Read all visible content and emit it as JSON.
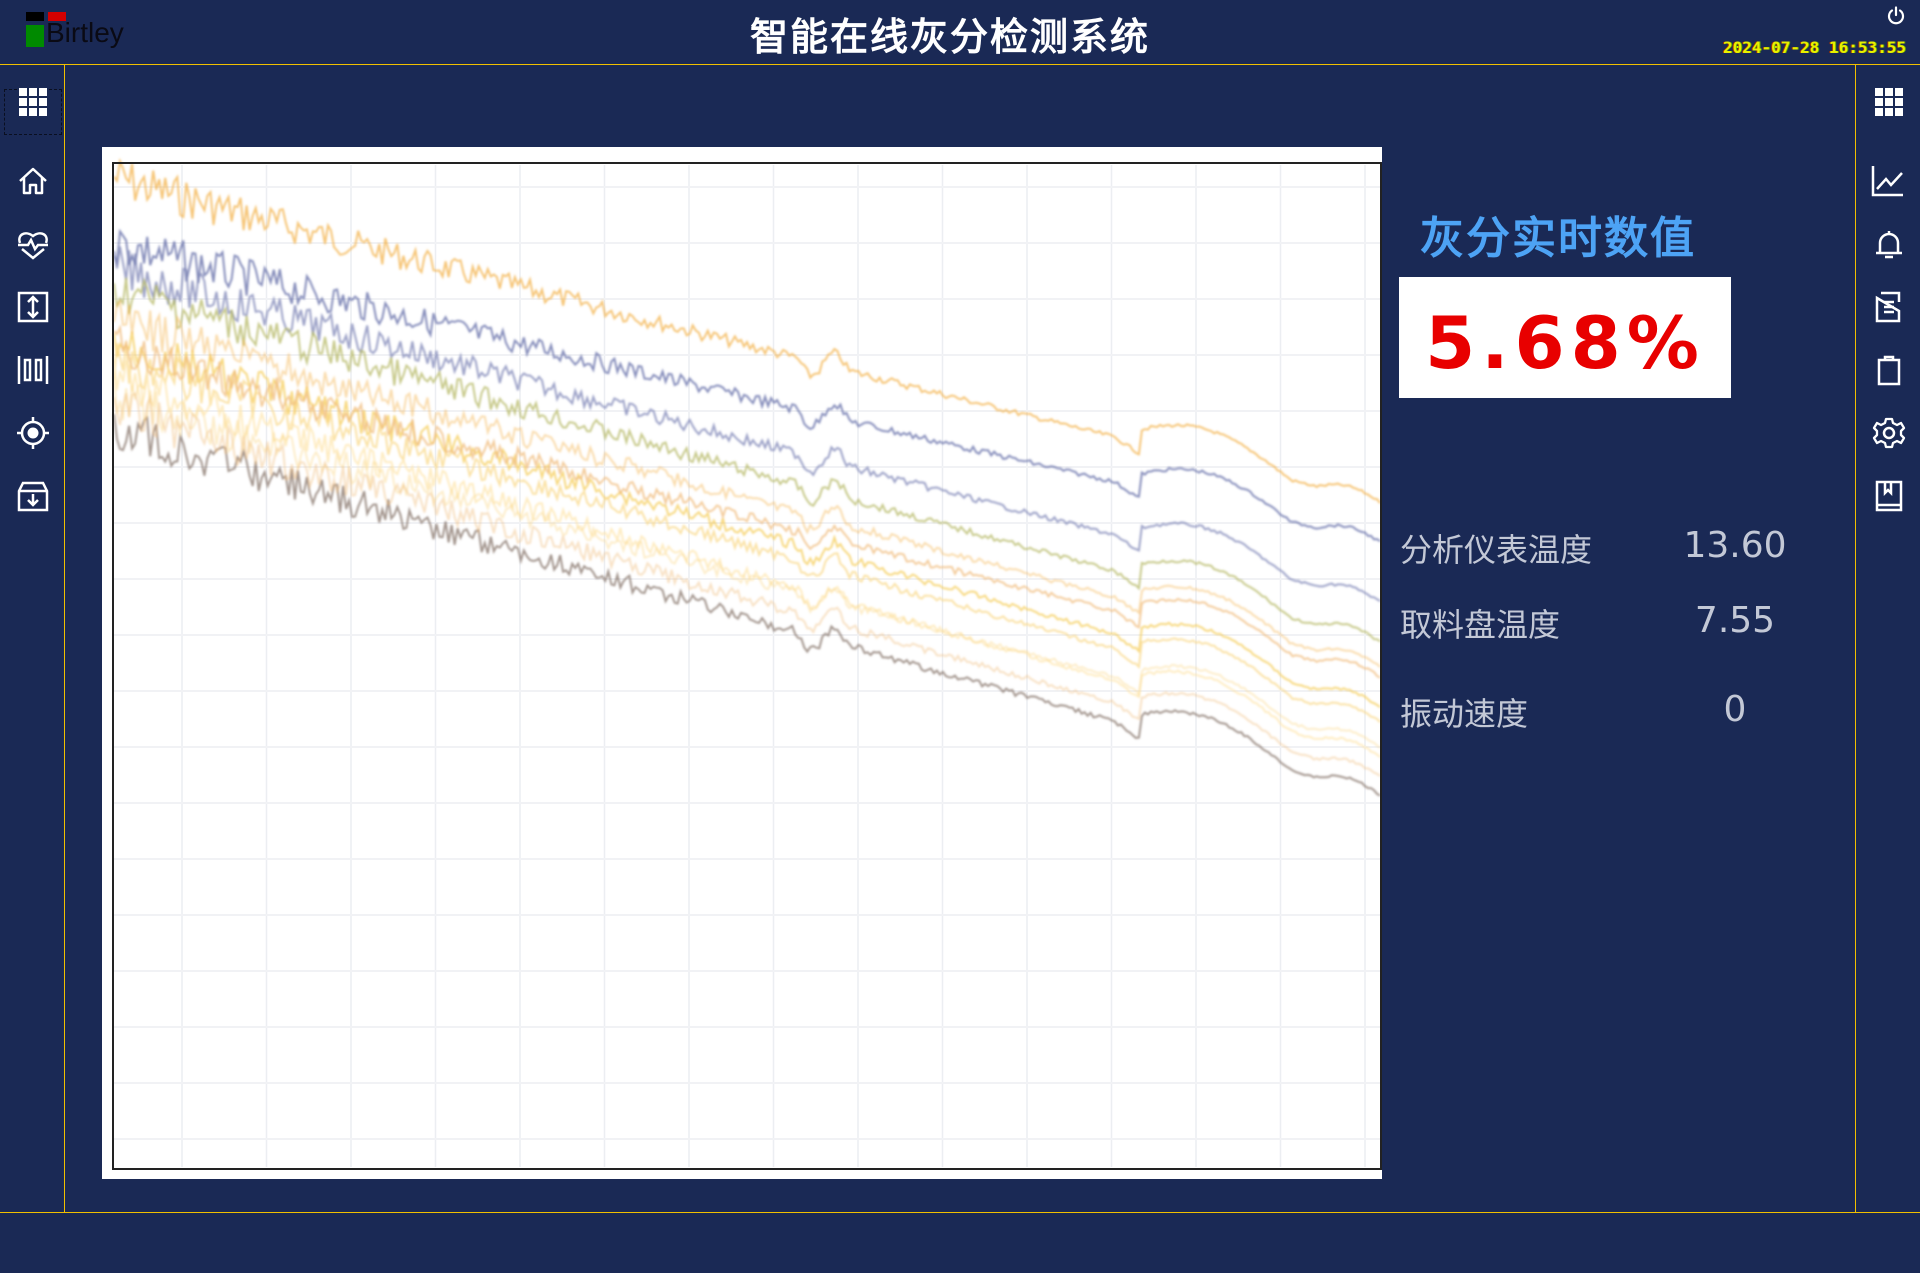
{
  "header": {
    "logo_text": "Birtley",
    "title": "智能在线灰分检测系统",
    "datetime": "2024-07-28  16:53:55",
    "power_icon": "power-icon"
  },
  "left_sidebar": {
    "items": [
      {
        "name": "apps",
        "icon": "grid-icon"
      },
      {
        "name": "home",
        "icon": "home-icon",
        "selected": true
      },
      {
        "name": "health",
        "icon": "heart-pulse-icon"
      },
      {
        "name": "resize",
        "icon": "vertical-expand-icon"
      },
      {
        "name": "barcode",
        "icon": "barcode-icon"
      },
      {
        "name": "target",
        "icon": "target-icon"
      },
      {
        "name": "archive",
        "icon": "archive-download-icon"
      }
    ]
  },
  "right_sidebar": {
    "items": [
      {
        "name": "apps",
        "icon": "grid-icon"
      },
      {
        "name": "trend",
        "icon": "line-chart-icon"
      },
      {
        "name": "alarm",
        "icon": "bell-icon"
      },
      {
        "name": "document",
        "icon": "document-icon"
      },
      {
        "name": "clipboard",
        "icon": "clipboard-icon"
      },
      {
        "name": "settings",
        "icon": "gear-icon"
      },
      {
        "name": "manual",
        "icon": "book-icon"
      }
    ]
  },
  "spectrum": {
    "grid": true,
    "colors": [
      "#f3b24a",
      "#5f6aa6",
      "#7c84b6",
      "#b5b866",
      "#f6cc55",
      "#fad888",
      "#f0bc7c",
      "#fde6ad",
      "#857368"
    ]
  },
  "realtime": {
    "title": "灰分实时数值",
    "value": "5.68%",
    "value_color": "#e80000"
  },
  "stats": [
    {
      "label": "分析仪表温度",
      "value": "13.60"
    },
    {
      "label": "取料盘温度",
      "value": "7.55"
    },
    {
      "label": "振动速度",
      "value": "0"
    }
  ]
}
